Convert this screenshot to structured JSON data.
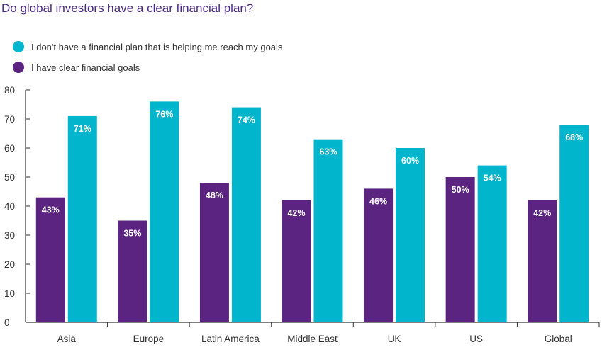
{
  "colors": {
    "series_a": "#00b5cc",
    "series_b": "#5b2480",
    "title": "#4b2a84"
  },
  "chart_data": {
    "type": "bar",
    "title": "Do global investors have a clear financial plan?",
    "categories": [
      "Asia",
      "Europe",
      "Latin America",
      "Middle East",
      "UK",
      "US",
      "Global"
    ],
    "series": [
      {
        "name": "I have clear financial goals",
        "values": [
          43,
          35,
          48,
          42,
          46,
          50,
          42
        ]
      },
      {
        "name": "I don't have a financial plan that is helping me reach my goals",
        "values": [
          71,
          76,
          74,
          63,
          60,
          54,
          68
        ]
      }
    ],
    "data_labels": {
      "I have clear financial goals": [
        "43%",
        "35%",
        "48%",
        "42%",
        "46%",
        "50%",
        "42%"
      ],
      "I don't have a financial plan that is helping me reach my goals": [
        "71%",
        "76%",
        "74%",
        "63%",
        "60%",
        "54%",
        "68%"
      ]
    },
    "yticks": [
      "0",
      "10",
      "20",
      "30",
      "40",
      "50",
      "60",
      "70",
      "80"
    ],
    "ylim": [
      0,
      80
    ],
    "legend_position": "top-left",
    "grid": false
  },
  "legend": [
    {
      "label": "I don't have a financial plan that is helping me reach my goals",
      "color": "#00b5cc"
    },
    {
      "label": "I have clear financial goals",
      "color": "#5b2480"
    }
  ]
}
